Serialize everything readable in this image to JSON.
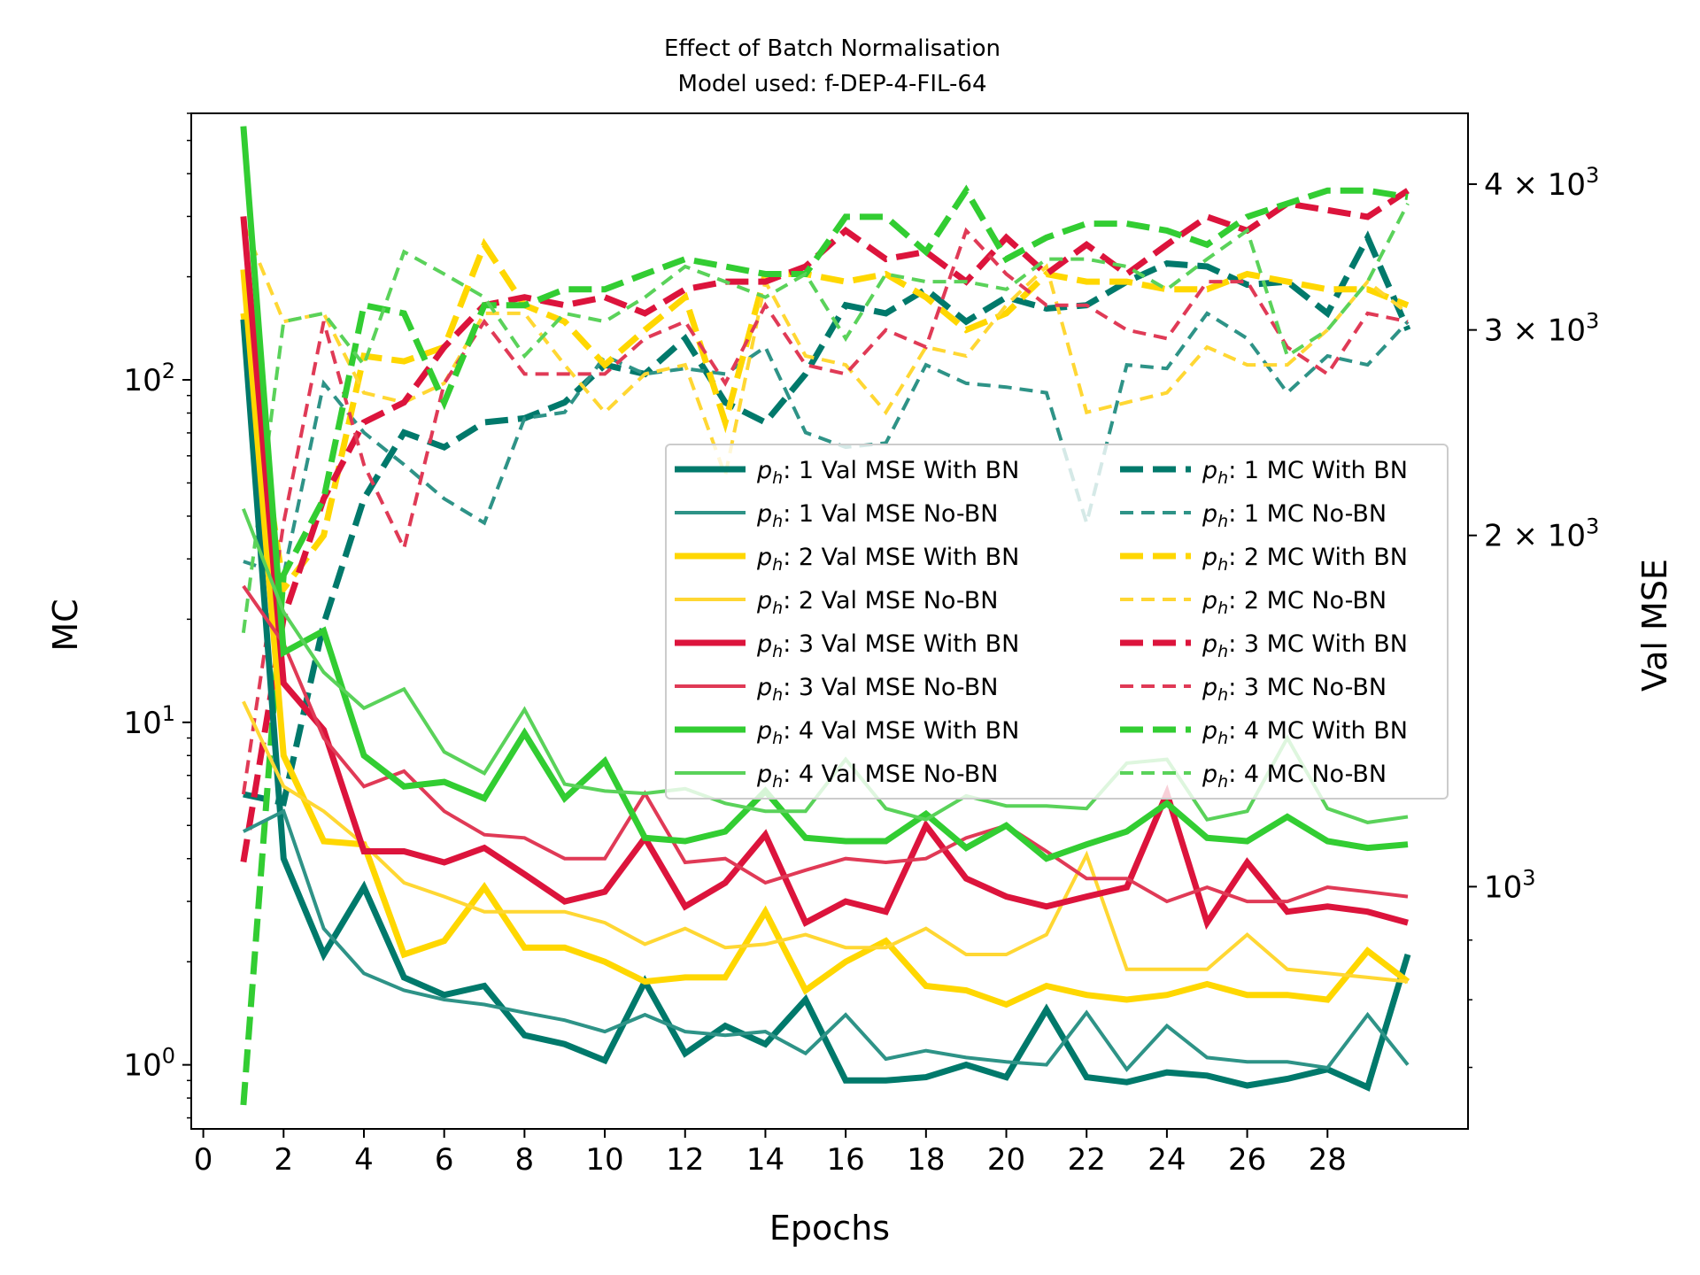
{
  "chart_data": {
    "type": "line",
    "title": "Effect of Batch Normalisation",
    "subtitle": "Model used: f-DEP-4-FIL-64",
    "xlabel": "Epochs",
    "ylabel_left": "MC",
    "ylabel_right": "Val MSE",
    "x_ticks": [
      0,
      2,
      4,
      6,
      8,
      10,
      12,
      14,
      16,
      18,
      20,
      22,
      24,
      26,
      28
    ],
    "xlim": [
      -0.3,
      31.5
    ],
    "left_axis": {
      "scale": "log",
      "ylim": [
        0.65,
        600
      ],
      "tick_labels": [
        {
          "value": 1,
          "base": "10",
          "exp": "0"
        },
        {
          "value": 10,
          "base": "10",
          "exp": "1"
        },
        {
          "value": 100,
          "base": "10",
          "exp": "2"
        }
      ]
    },
    "right_axis": {
      "scale": "log",
      "ylim": [
        620,
        4600
      ],
      "tick_labels": [
        {
          "value": 1000,
          "base": "10",
          "exp": "3",
          "prefix": ""
        },
        {
          "value": 2000,
          "base": "10",
          "exp": "3",
          "prefix": "2 × "
        },
        {
          "value": 3000,
          "base": "10",
          "exp": "3",
          "prefix": "3 × "
        },
        {
          "value": 4000,
          "base": "10",
          "exp": "3",
          "prefix": "4 × "
        }
      ]
    },
    "grid": false,
    "legend_placement": "center-right",
    "x": [
      1,
      2,
      3,
      4,
      5,
      6,
      7,
      8,
      9,
      10,
      11,
      12,
      13,
      14,
      15,
      16,
      17,
      18,
      19,
      20,
      21,
      22,
      23,
      24,
      25,
      26,
      27,
      28,
      29,
      30
    ],
    "series": [
      {
        "name": "1 Val MSE With BN",
        "axis": "left",
        "color": "#00796b",
        "style": "solid",
        "width": 7,
        "values": [
          150,
          4.0,
          2.1,
          3.3,
          1.8,
          1.6,
          1.7,
          1.22,
          1.15,
          1.03,
          1.75,
          1.08,
          1.3,
          1.15,
          1.55,
          0.9,
          0.9,
          0.92,
          1.0,
          0.92,
          1.45,
          0.92,
          0.89,
          0.95,
          0.93,
          0.87,
          0.91,
          0.97,
          0.86,
          2.1
        ]
      },
      {
        "name": "1 Val MSE No-BN",
        "axis": "left",
        "color": "#2e9387",
        "style": "solid",
        "width": 4,
        "values": [
          4.8,
          5.5,
          2.5,
          1.85,
          1.65,
          1.55,
          1.5,
          1.42,
          1.35,
          1.25,
          1.4,
          1.25,
          1.22,
          1.25,
          1.08,
          1.4,
          1.04,
          1.1,
          1.05,
          1.02,
          1.0,
          1.42,
          0.97,
          1.3,
          1.05,
          1.02,
          1.02,
          0.98,
          1.4,
          1.0
        ]
      },
      {
        "name": "2 Val MSE With BN",
        "axis": "left",
        "color": "#ffd700",
        "style": "solid",
        "width": 7,
        "values": [
          210,
          8.0,
          4.5,
          4.4,
          2.1,
          2.3,
          3.3,
          2.2,
          2.2,
          2.0,
          1.75,
          1.8,
          1.8,
          2.8,
          1.65,
          2.0,
          2.3,
          1.7,
          1.65,
          1.5,
          1.7,
          1.6,
          1.55,
          1.6,
          1.72,
          1.6,
          1.6,
          1.55,
          2.15,
          1.75
        ]
      },
      {
        "name": "2 Val MSE No-BN",
        "axis": "left",
        "color": "#ffd733",
        "style": "solid",
        "width": 4,
        "values": [
          11.5,
          6.5,
          5.5,
          4.4,
          3.4,
          3.1,
          2.8,
          2.8,
          2.8,
          2.6,
          2.25,
          2.5,
          2.2,
          2.25,
          2.4,
          2.2,
          2.2,
          2.5,
          2.1,
          2.1,
          2.4,
          4.1,
          1.9,
          1.9,
          1.9,
          2.4,
          1.9,
          1.85,
          1.8,
          1.75
        ]
      },
      {
        "name": "3 Val MSE With BN",
        "axis": "left",
        "color": "#dc143c",
        "style": "solid",
        "width": 7,
        "values": [
          300,
          13.0,
          9.5,
          4.2,
          4.2,
          3.9,
          4.3,
          3.6,
          3.0,
          3.2,
          4.6,
          2.9,
          3.4,
          4.7,
          2.6,
          3.0,
          2.8,
          5.0,
          3.5,
          3.1,
          2.9,
          3.1,
          3.3,
          6.2,
          2.6,
          3.9,
          2.8,
          2.9,
          2.8,
          2.6
        ]
      },
      {
        "name": "3 Val MSE No-BN",
        "axis": "left",
        "color": "#e03a56",
        "style": "solid",
        "width": 4,
        "values": [
          25,
          17,
          9.0,
          6.5,
          7.2,
          5.5,
          4.7,
          4.6,
          4.0,
          4.0,
          6.2,
          3.9,
          4.0,
          3.4,
          3.7,
          4.0,
          3.9,
          4.0,
          4.6,
          5.0,
          4.2,
          3.5,
          3.5,
          3.0,
          3.3,
          3.0,
          3.0,
          3.3,
          3.2,
          3.1
        ]
      },
      {
        "name": "4 Val MSE With BN",
        "axis": "left",
        "color": "#32cd32",
        "style": "solid",
        "width": 7,
        "values": [
          550,
          16,
          18.5,
          8.0,
          6.5,
          6.7,
          6.0,
          9.3,
          6.0,
          7.7,
          4.6,
          4.5,
          4.8,
          6.3,
          4.6,
          4.5,
          4.5,
          5.4,
          4.3,
          5.0,
          4.0,
          4.4,
          4.8,
          5.8,
          4.6,
          4.5,
          5.3,
          4.5,
          4.3,
          4.4
        ]
      },
      {
        "name": "4 Val MSE No-BN",
        "axis": "left",
        "color": "#5ad25a",
        "style": "solid",
        "width": 4,
        "values": [
          42,
          21,
          14,
          11,
          12.5,
          8.2,
          7.1,
          10.9,
          6.6,
          6.3,
          6.2,
          6.4,
          5.8,
          5.5,
          5.5,
          7.8,
          5.6,
          5.2,
          6.1,
          5.7,
          5.7,
          5.6,
          7.6,
          7.8,
          5.2,
          5.5,
          9.0,
          5.6,
          5.1,
          5.3
        ]
      },
      {
        "name": "1 MC With BN",
        "axis": "right",
        "color": "#00796b",
        "style": "dashed",
        "width": 7,
        "values": [
          1200,
          1180,
          1680,
          2150,
          2450,
          2380,
          2500,
          2520,
          2600,
          2800,
          2750,
          2950,
          2600,
          2500,
          2750,
          3150,
          3100,
          3250,
          3050,
          3200,
          3130,
          3150,
          3300,
          3420,
          3400,
          3280,
          3300,
          3100,
          3600,
          3000
        ]
      },
      {
        "name": "1 MC No-BN",
        "axis": "right",
        "color": "#2e9387",
        "style": "dashed",
        "width": 4,
        "values": [
          1900,
          1850,
          2700,
          2450,
          2300,
          2150,
          2050,
          2520,
          2550,
          2850,
          2750,
          2780,
          2750,
          2900,
          2450,
          2380,
          2400,
          2800,
          2700,
          2680,
          2650,
          2050,
          2800,
          2780,
          3100,
          2950,
          2650,
          2850,
          2800,
          3050
        ]
      },
      {
        "name": "2 MC With BN",
        "axis": "right",
        "color": "#ffd700",
        "style": "dashed",
        "width": 7,
        "values": [
          3100,
          1800,
          2000,
          2850,
          2820,
          2900,
          3550,
          3150,
          3050,
          2800,
          3000,
          3200,
          2500,
          3350,
          3350,
          3300,
          3350,
          3200,
          3000,
          3100,
          3350,
          3300,
          3300,
          3250,
          3250,
          3350,
          3300,
          3250,
          3250,
          3150
        ]
      },
      {
        "name": "2 MC No-BN",
        "axis": "right",
        "color": "#ffd733",
        "style": "dashed",
        "width": 4,
        "values": [
          3700,
          3050,
          3100,
          2650,
          2600,
          2700,
          3100,
          3100,
          2800,
          2550,
          2750,
          2800,
          2250,
          3300,
          2850,
          2800,
          2550,
          2900,
          2850,
          3150,
          3400,
          2550,
          2600,
          2650,
          2900,
          2800,
          2800,
          3000,
          3300,
          3100
        ]
      },
      {
        "name": "3 MC With BN",
        "axis": "right",
        "color": "#dc143c",
        "style": "dashed",
        "width": 7,
        "values": [
          1050,
          1700,
          2150,
          2500,
          2600,
          2900,
          3150,
          3200,
          3150,
          3200,
          3100,
          3250,
          3300,
          3300,
          3400,
          3650,
          3450,
          3500,
          3300,
          3600,
          3350,
          3550,
          3350,
          3550,
          3750,
          3650,
          3850,
          3800,
          3750,
          3950
        ]
      },
      {
        "name": "3 MC No-BN",
        "axis": "right",
        "color": "#e03a56",
        "style": "dashed",
        "width": 4,
        "values": [
          1200,
          2050,
          3050,
          2300,
          1950,
          2700,
          3050,
          2750,
          2750,
          2750,
          2950,
          3050,
          2700,
          3150,
          2800,
          2750,
          3000,
          2900,
          3650,
          3350,
          3150,
          3150,
          3000,
          2950,
          3300,
          3300,
          2900,
          2750,
          3100,
          3050
        ]
      },
      {
        "name": "4 MC With BN",
        "axis": "right",
        "color": "#32cd32",
        "style": "dashed",
        "width": 7,
        "values": [
          650,
          1850,
          2150,
          3150,
          3100,
          2600,
          3150,
          3150,
          3250,
          3250,
          3350,
          3450,
          3400,
          3350,
          3350,
          3750,
          3750,
          3500,
          3950,
          3450,
          3600,
          3700,
          3700,
          3650,
          3550,
          3750,
          3850,
          3950,
          3950,
          3900
        ]
      },
      {
        "name": "4 MC No-BN",
        "axis": "right",
        "color": "#5ad25a",
        "style": "dashed",
        "width": 4,
        "values": [
          1650,
          3050,
          3100,
          2800,
          3500,
          3350,
          3200,
          2850,
          3100,
          3050,
          3200,
          3400,
          3300,
          3200,
          3350,
          2950,
          3350,
          3300,
          3300,
          3250,
          3450,
          3450,
          3400,
          3250,
          3450,
          3650,
          2850,
          3000,
          3300,
          3850
        ]
      }
    ],
    "legend": {
      "prefix_symbol": "p",
      "prefix_subscript": "h",
      "prefix_suffix": ":"
    }
  }
}
